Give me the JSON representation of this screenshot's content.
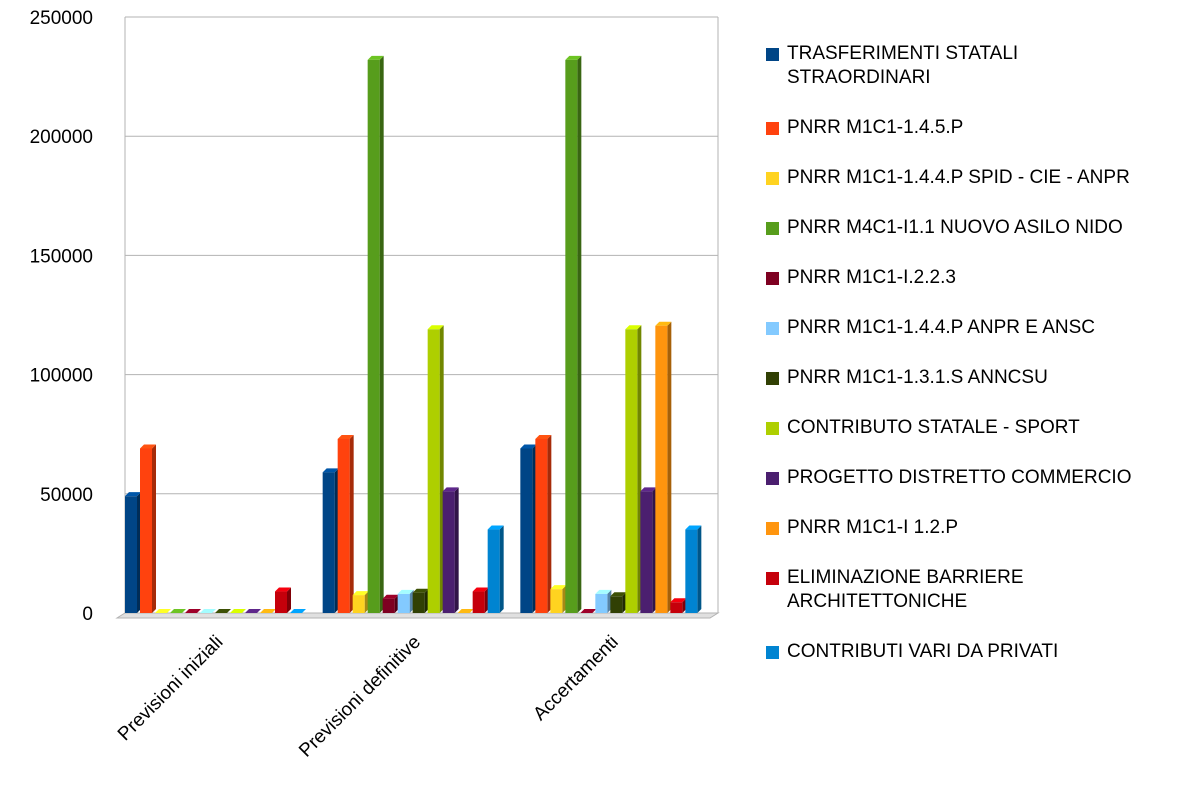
{
  "chart_data": {
    "type": "bar",
    "categories": [
      "Previsioni iniziali",
      "Previsioni definitive",
      "Accertamenti"
    ],
    "series": [
      {
        "name": "TRASFERIMENTI STATALI STRAORDINARI",
        "color": "#004586",
        "values": [
          49000,
          59000,
          69000
        ]
      },
      {
        "name": "PNRR M1C1-1.4.5.P",
        "color": "#ff420e",
        "values": [
          69000,
          73000,
          73000
        ]
      },
      {
        "name": "PNRR M1C1-1.4.4.P SPID - CIE - ANPR",
        "color": "#ffd320",
        "values": [
          0,
          7500,
          10000
        ]
      },
      {
        "name": "PNRR M4C1-I1.1 NUOVO ASILO NIDO",
        "color": "#579d1c",
        "values": [
          0,
          232000,
          232000
        ]
      },
      {
        "name": "PNRR M1C1-I.2.2.3",
        "color": "#7e0021",
        "values": [
          0,
          6000,
          0
        ]
      },
      {
        "name": "PNRR M1C1-1.4.4.P ANPR E ANSC",
        "color": "#83caff",
        "values": [
          0,
          8000,
          8000
        ]
      },
      {
        "name": "PNRR M1C1-1.3.1.S ANNCSU",
        "color": "#314004",
        "values": [
          0,
          8500,
          7000
        ]
      },
      {
        "name": "CONTRIBUTO STATALE - SPORT",
        "color": "#aecf00",
        "values": [
          0,
          119000,
          119000
        ]
      },
      {
        "name": "PROGETTO DISTRETTO COMMERCIO",
        "color": "#4b1f6f",
        "values": [
          0,
          51000,
          51000
        ]
      },
      {
        "name": "PNRR M1C1-I 1.2.P",
        "color": "#ff950e",
        "values": [
          0,
          0,
          120500
        ]
      },
      {
        "name": "ELIMINAZIONE BARRIERE ARCHITETTONICHE",
        "color": "#c5000b",
        "values": [
          9000,
          9000,
          4500
        ]
      },
      {
        "name": "CONTRIBUTI VARI DA PRIVATI",
        "color": "#0084d1",
        "values": [
          0,
          35000,
          35000
        ]
      }
    ],
    "ylim": [
      0,
      250000
    ],
    "yticks": [
      0,
      50000,
      100000,
      150000,
      200000,
      250000
    ],
    "grid": true,
    "legend": "right"
  }
}
